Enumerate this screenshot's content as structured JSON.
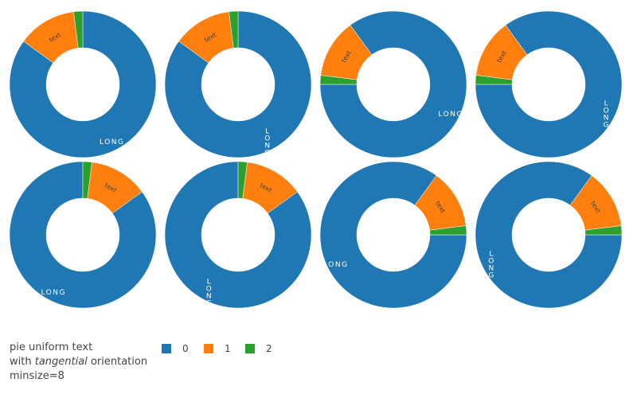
{
  "chart_data": {
    "type": "pie",
    "hole": 0.5,
    "colors": [
      "#1f77b4",
      "#ff7f0e",
      "#2ca02c"
    ],
    "legend": {
      "placement": "bottom",
      "items": [
        "0",
        "1",
        "2"
      ]
    },
    "title": {
      "line1": "pie uniform text",
      "line2_before": "with ",
      "line2_emph": "tangential",
      "line2_after": " orientation",
      "line3": "minsize=8"
    },
    "pies": [
      {
        "labels": [
          "0",
          "1",
          "2"
        ],
        "values": [
          85,
          13,
          2
        ],
        "rotation": 0,
        "direction": "clockwise",
        "texts": [
          "LONG",
          "text",
          ""
        ],
        "text_orientation": "horizontal"
      },
      {
        "labels": [
          "0",
          "1",
          "2"
        ],
        "values": [
          85,
          13,
          2
        ],
        "rotation": 0,
        "direction": "clockwise",
        "texts": [
          "LONG",
          "text",
          ""
        ],
        "text_orientation": "radial"
      },
      {
        "labels": [
          "0",
          "1",
          "2"
        ],
        "values": [
          85,
          13,
          2
        ],
        "rotation": 270,
        "direction": "counterclockwise",
        "texts": [
          "LONG",
          "text",
          ""
        ],
        "text_orientation": "horizontal"
      },
      {
        "labels": [
          "0",
          "1",
          "2"
        ],
        "values": [
          85,
          13,
          2
        ],
        "rotation": 270,
        "direction": "counterclockwise",
        "texts": [
          "LONG",
          "text",
          ""
        ],
        "text_orientation": "radial"
      },
      {
        "labels": [
          "0",
          "1",
          "2"
        ],
        "values": [
          85,
          13,
          2
        ],
        "rotation": 0,
        "direction": "counterclockwise",
        "texts": [
          "LONG",
          "text",
          ""
        ],
        "text_orientation": "horizontal"
      },
      {
        "labels": [
          "0",
          "1",
          "2"
        ],
        "values": [
          85,
          13,
          2
        ],
        "rotation": 0,
        "direction": "counterclockwise",
        "texts": [
          "LONG",
          "text",
          ""
        ],
        "text_orientation": "radial"
      },
      {
        "labels": [
          "0",
          "1",
          "2"
        ],
        "values": [
          85,
          13,
          2
        ],
        "rotation": 90,
        "direction": "clockwise",
        "texts": [
          "LONG",
          "text",
          ""
        ],
        "text_orientation": "horizontal"
      },
      {
        "labels": [
          "0",
          "1",
          "2"
        ],
        "values": [
          85,
          13,
          2
        ],
        "rotation": 90,
        "direction": "clockwise",
        "texts": [
          "LONG",
          "text",
          ""
        ],
        "text_orientation": "radial"
      }
    ]
  }
}
